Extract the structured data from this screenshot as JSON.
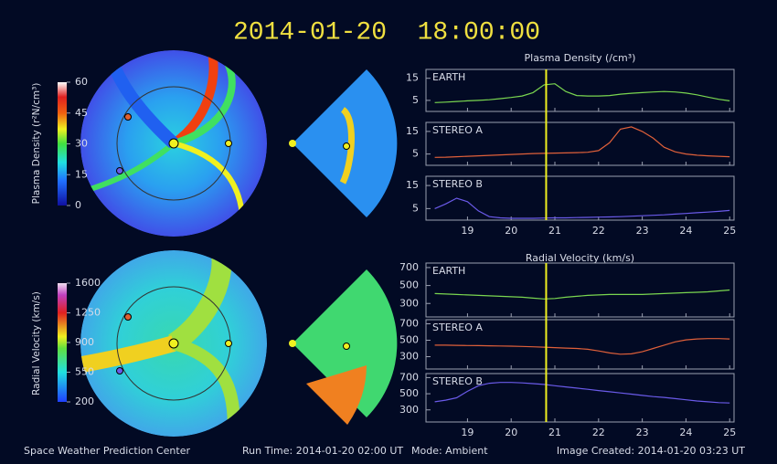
{
  "header": {
    "timestamp": "2014-01-20  18:00:00"
  },
  "colorbars": [
    {
      "label": "Plasma Density (r²N/cm³)",
      "lim": [
        0,
        60
      ],
      "ticks": [
        0,
        15,
        30,
        45,
        60
      ]
    },
    {
      "label": "Radial Velocity (km/s)",
      "lim": [
        200,
        1600
      ],
      "ticks": [
        200,
        550,
        900,
        1250,
        1600
      ]
    }
  ],
  "chart_data": [
    {
      "type": "line",
      "title": "Plasma Density (/cm³)",
      "x": [
        18.25,
        18.5,
        18.75,
        19,
        19.25,
        19.5,
        19.75,
        20,
        20.25,
        20.5,
        20.75,
        21,
        21.25,
        21.5,
        21.75,
        22,
        22.25,
        22.5,
        22.75,
        23,
        23.25,
        23.5,
        23.75,
        24,
        24.25,
        24.5,
        24.75,
        25
      ],
      "xlim": [
        18.05,
        25.1
      ],
      "xticks": [
        19,
        20,
        21,
        22,
        23,
        24,
        25
      ],
      "marker_x": 20.8,
      "marker_color": "#f0f020",
      "series": [
        {
          "name": "EARTH",
          "color": "#7ad650",
          "ylim": [
            0,
            19
          ],
          "yticks": [
            5,
            15
          ],
          "values": [
            4,
            4.2,
            4.5,
            4.8,
            5,
            5.3,
            5.8,
            6.3,
            7,
            8.5,
            12,
            12.5,
            9,
            7.2,
            7,
            7,
            7.2,
            7.8,
            8.2,
            8.5,
            8.8,
            9,
            8.8,
            8.3,
            7.5,
            6.5,
            5.5,
            4.8
          ]
        },
        {
          "name": "STEREO A",
          "color": "#e0603a",
          "ylim": [
            0,
            19
          ],
          "yticks": [
            5,
            15
          ],
          "values": [
            3.5,
            3.6,
            3.8,
            4,
            4.2,
            4.4,
            4.6,
            4.8,
            5,
            5.2,
            5.3,
            5.4,
            5.5,
            5.6,
            5.8,
            6.5,
            10,
            16,
            17,
            15,
            12,
            8,
            6,
            5,
            4.5,
            4.2,
            4,
            3.8
          ]
        },
        {
          "name": "STEREO B",
          "color": "#6a5ae8",
          "ylim": [
            0,
            19
          ],
          "yticks": [
            5,
            15
          ],
          "values": [
            5,
            7,
            9.5,
            8,
            4,
            1.5,
            1,
            0.8,
            0.8,
            0.8,
            0.9,
            1,
            1,
            1.1,
            1.2,
            1.3,
            1.4,
            1.5,
            1.7,
            1.9,
            2.1,
            2.3,
            2.6,
            2.9,
            3.2,
            3.5,
            3.8,
            4.2
          ]
        }
      ]
    },
    {
      "type": "line",
      "title": "Radial Velocity (km/s)",
      "x": [
        18.25,
        18.5,
        18.75,
        19,
        19.25,
        19.5,
        19.75,
        20,
        20.25,
        20.5,
        20.75,
        21,
        21.25,
        21.5,
        21.75,
        22,
        22.25,
        22.5,
        22.75,
        23,
        23.25,
        23.5,
        23.75,
        24,
        24.25,
        24.5,
        24.75,
        25
      ],
      "xlim": [
        18.05,
        25.1
      ],
      "xticks": [
        19,
        20,
        21,
        22,
        23,
        24,
        25
      ],
      "marker_x": 20.8,
      "marker_color": "#f0f020",
      "series": [
        {
          "name": "EARTH",
          "color": "#7ad650",
          "ylim": [
            150,
            750
          ],
          "yticks": [
            300,
            500,
            700
          ],
          "values": [
            410,
            405,
            400,
            395,
            390,
            385,
            380,
            375,
            370,
            360,
            350,
            355,
            370,
            380,
            390,
            395,
            400,
            400,
            400,
            400,
            405,
            410,
            415,
            420,
            425,
            430,
            440,
            450
          ]
        },
        {
          "name": "STEREO A",
          "color": "#e0603a",
          "ylim": [
            150,
            750
          ],
          "yticks": [
            300,
            500,
            700
          ],
          "values": [
            440,
            440,
            438,
            436,
            434,
            432,
            430,
            428,
            425,
            420,
            415,
            410,
            405,
            400,
            390,
            370,
            345,
            330,
            335,
            360,
            400,
            440,
            480,
            505,
            515,
            520,
            520,
            515
          ]
        },
        {
          "name": "STEREO B",
          "color": "#6a5ae8",
          "ylim": [
            150,
            750
          ],
          "yticks": [
            300,
            500,
            700
          ],
          "values": [
            400,
            420,
            450,
            530,
            600,
            630,
            640,
            640,
            635,
            625,
            615,
            600,
            585,
            570,
            555,
            540,
            525,
            510,
            495,
            480,
            465,
            455,
            440,
            425,
            410,
            400,
            390,
            385
          ]
        }
      ]
    }
  ],
  "footer": {
    "center": "Space Weather Prediction Center",
    "run_time": "Run Time: 2014-01-20 02:00 UT",
    "mode": "Mode: Ambient",
    "image_created": "Image Created: 2014-01-20 03:23 UT"
  }
}
